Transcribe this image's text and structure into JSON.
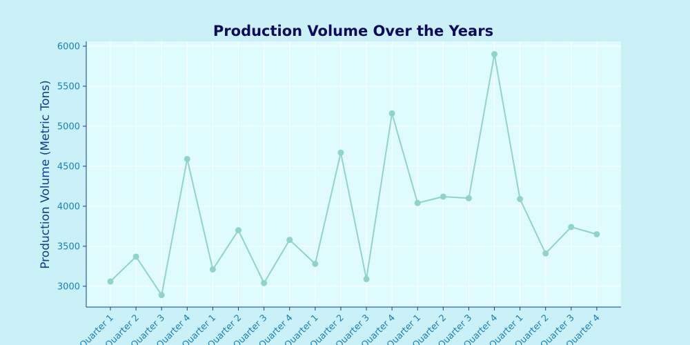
{
  "colors": {
    "figure_background": "#cbf1f8",
    "plot_background": "#e0fbfd",
    "line": "#8fd3c9",
    "marker": "#8fd3c9",
    "axis": "#0b3d91",
    "title": "#0b0b5e",
    "tick_label": "#1a7fb5",
    "grid": "#ffffff"
  },
  "chart_data": {
    "type": "line",
    "title": "Production Volume Over the Years",
    "xlabel": "",
    "ylabel": "Production Volume (Metric Tons)",
    "categories": [
      "Quarter 1",
      "Quarter 2",
      "Quarter 3",
      "Quarter 4",
      "Quarter 1",
      "Quarter 2",
      "Quarter 3",
      "Quarter 4",
      "Quarter 1",
      "Quarter 2",
      "Quarter 3",
      "Quarter 4",
      "Quarter 1",
      "Quarter 2",
      "Quarter 3",
      "Quarter 4",
      "Quarter 1",
      "Quarter 2",
      "Quarter 3",
      "Quarter 4"
    ],
    "values": [
      3060,
      3370,
      2890,
      4590,
      3210,
      3700,
      3040,
      3580,
      3280,
      4670,
      3090,
      5160,
      4040,
      4120,
      4100,
      5900,
      4090,
      3410,
      3740,
      3650
    ],
    "ylim": [
      2740,
      6060
    ],
    "yticks": [
      3000,
      3500,
      4000,
      4500,
      5000,
      5500,
      6000
    ],
    "grid": true,
    "legend": "none"
  }
}
